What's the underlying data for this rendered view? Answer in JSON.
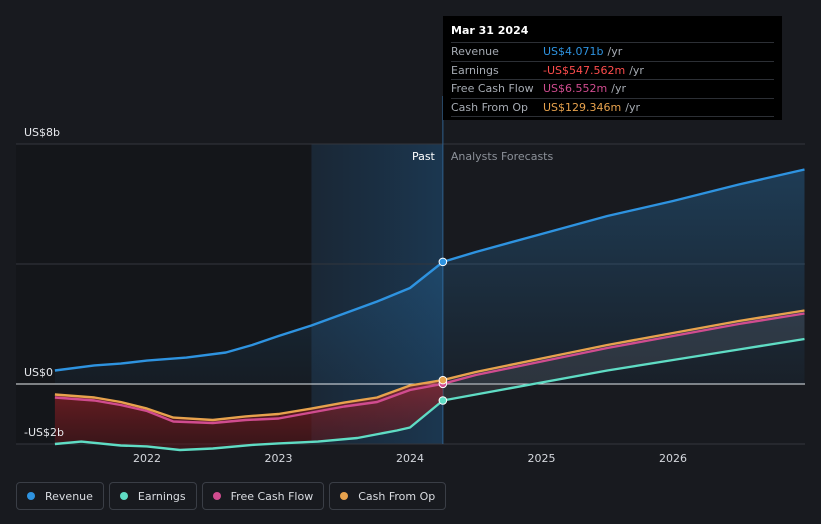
{
  "chart_data": {
    "type": "line",
    "x_ticks": [
      "2022",
      "2023",
      "2024",
      "2025",
      "2026"
    ],
    "y_labels": {
      "top": "US$8b",
      "zero": "US$0",
      "bottom": "-US$2b"
    },
    "ylim": [
      -2,
      8
    ],
    "xlim": [
      2021.3,
      2027.0
    ],
    "regions": {
      "past_label": "Past",
      "forecast_label": "Analysts Forecasts",
      "divider_x": 2024.25
    },
    "series": [
      {
        "name": "Revenue",
        "color": "#2e93e0",
        "x": [
          2021.3,
          2021.6,
          2021.8,
          2022.0,
          2022.3,
          2022.6,
          2022.8,
          2023.0,
          2023.25,
          2023.5,
          2023.75,
          2024.0,
          2024.25,
          2024.5,
          2025.0,
          2025.5,
          2026.0,
          2026.5,
          2027.0
        ],
        "values": [
          0.45,
          0.62,
          0.68,
          0.78,
          0.88,
          1.05,
          1.3,
          1.6,
          1.95,
          2.35,
          2.75,
          3.2,
          4.071,
          4.4,
          5.0,
          5.6,
          6.1,
          6.65,
          7.15
        ]
      },
      {
        "name": "Earnings",
        "color": "#5fdcc4",
        "x": [
          2021.3,
          2021.5,
          2021.8,
          2022.0,
          2022.25,
          2022.5,
          2022.8,
          2023.0,
          2023.3,
          2023.6,
          2023.9,
          2024.0,
          2024.25,
          2024.5,
          2025.0,
          2025.5,
          2026.0,
          2026.5,
          2027.0
        ],
        "values": [
          -2.0,
          -1.92,
          -2.05,
          -2.08,
          -2.2,
          -2.15,
          -2.03,
          -1.98,
          -1.92,
          -1.8,
          -1.55,
          -1.45,
          -0.55,
          -0.35,
          0.05,
          0.45,
          0.8,
          1.15,
          1.5
        ],
        "raw_last_actual": -0.548
      },
      {
        "name": "Free Cash Flow",
        "color": "#d04c8f",
        "x": [
          2021.3,
          2021.6,
          2021.8,
          2022.0,
          2022.2,
          2022.5,
          2022.75,
          2023.0,
          2023.25,
          2023.5,
          2023.75,
          2024.0,
          2024.25,
          2024.5,
          2025.0,
          2025.5,
          2026.0,
          2026.5,
          2027.0
        ],
        "values": [
          -0.45,
          -0.55,
          -0.7,
          -0.9,
          -1.25,
          -1.3,
          -1.2,
          -1.15,
          -0.95,
          -0.75,
          -0.6,
          -0.2,
          0.007,
          0.3,
          0.75,
          1.2,
          1.6,
          2.0,
          2.35
        ]
      },
      {
        "name": "Cash From Op",
        "color": "#e7a24d",
        "x": [
          2021.3,
          2021.6,
          2021.8,
          2022.0,
          2022.2,
          2022.5,
          2022.75,
          2023.0,
          2023.25,
          2023.5,
          2023.75,
          2024.0,
          2024.25,
          2024.5,
          2025.0,
          2025.5,
          2026.0,
          2026.5,
          2027.0
        ],
        "values": [
          -0.35,
          -0.45,
          -0.6,
          -0.82,
          -1.12,
          -1.2,
          -1.08,
          -1.0,
          -0.82,
          -0.62,
          -0.45,
          -0.05,
          0.129,
          0.4,
          0.85,
          1.3,
          1.7,
          2.1,
          2.45
        ]
      }
    ],
    "tooltip": {
      "date": "Mar 31 2024",
      "rows": [
        {
          "name": "Revenue",
          "value": "US$4.071b",
          "unit": "/yr",
          "color": "#2e93e0"
        },
        {
          "name": "Earnings",
          "value": "-US$547.562m",
          "unit": "/yr",
          "color": "#ff4d4d"
        },
        {
          "name": "Free Cash Flow",
          "value": "US$6.552m",
          "unit": "/yr",
          "color": "#d04c8f"
        },
        {
          "name": "Cash From Op",
          "value": "US$129.346m",
          "unit": "/yr",
          "color": "#e7a24d"
        }
      ]
    },
    "grid": true,
    "legend_position": "bottom-left"
  }
}
